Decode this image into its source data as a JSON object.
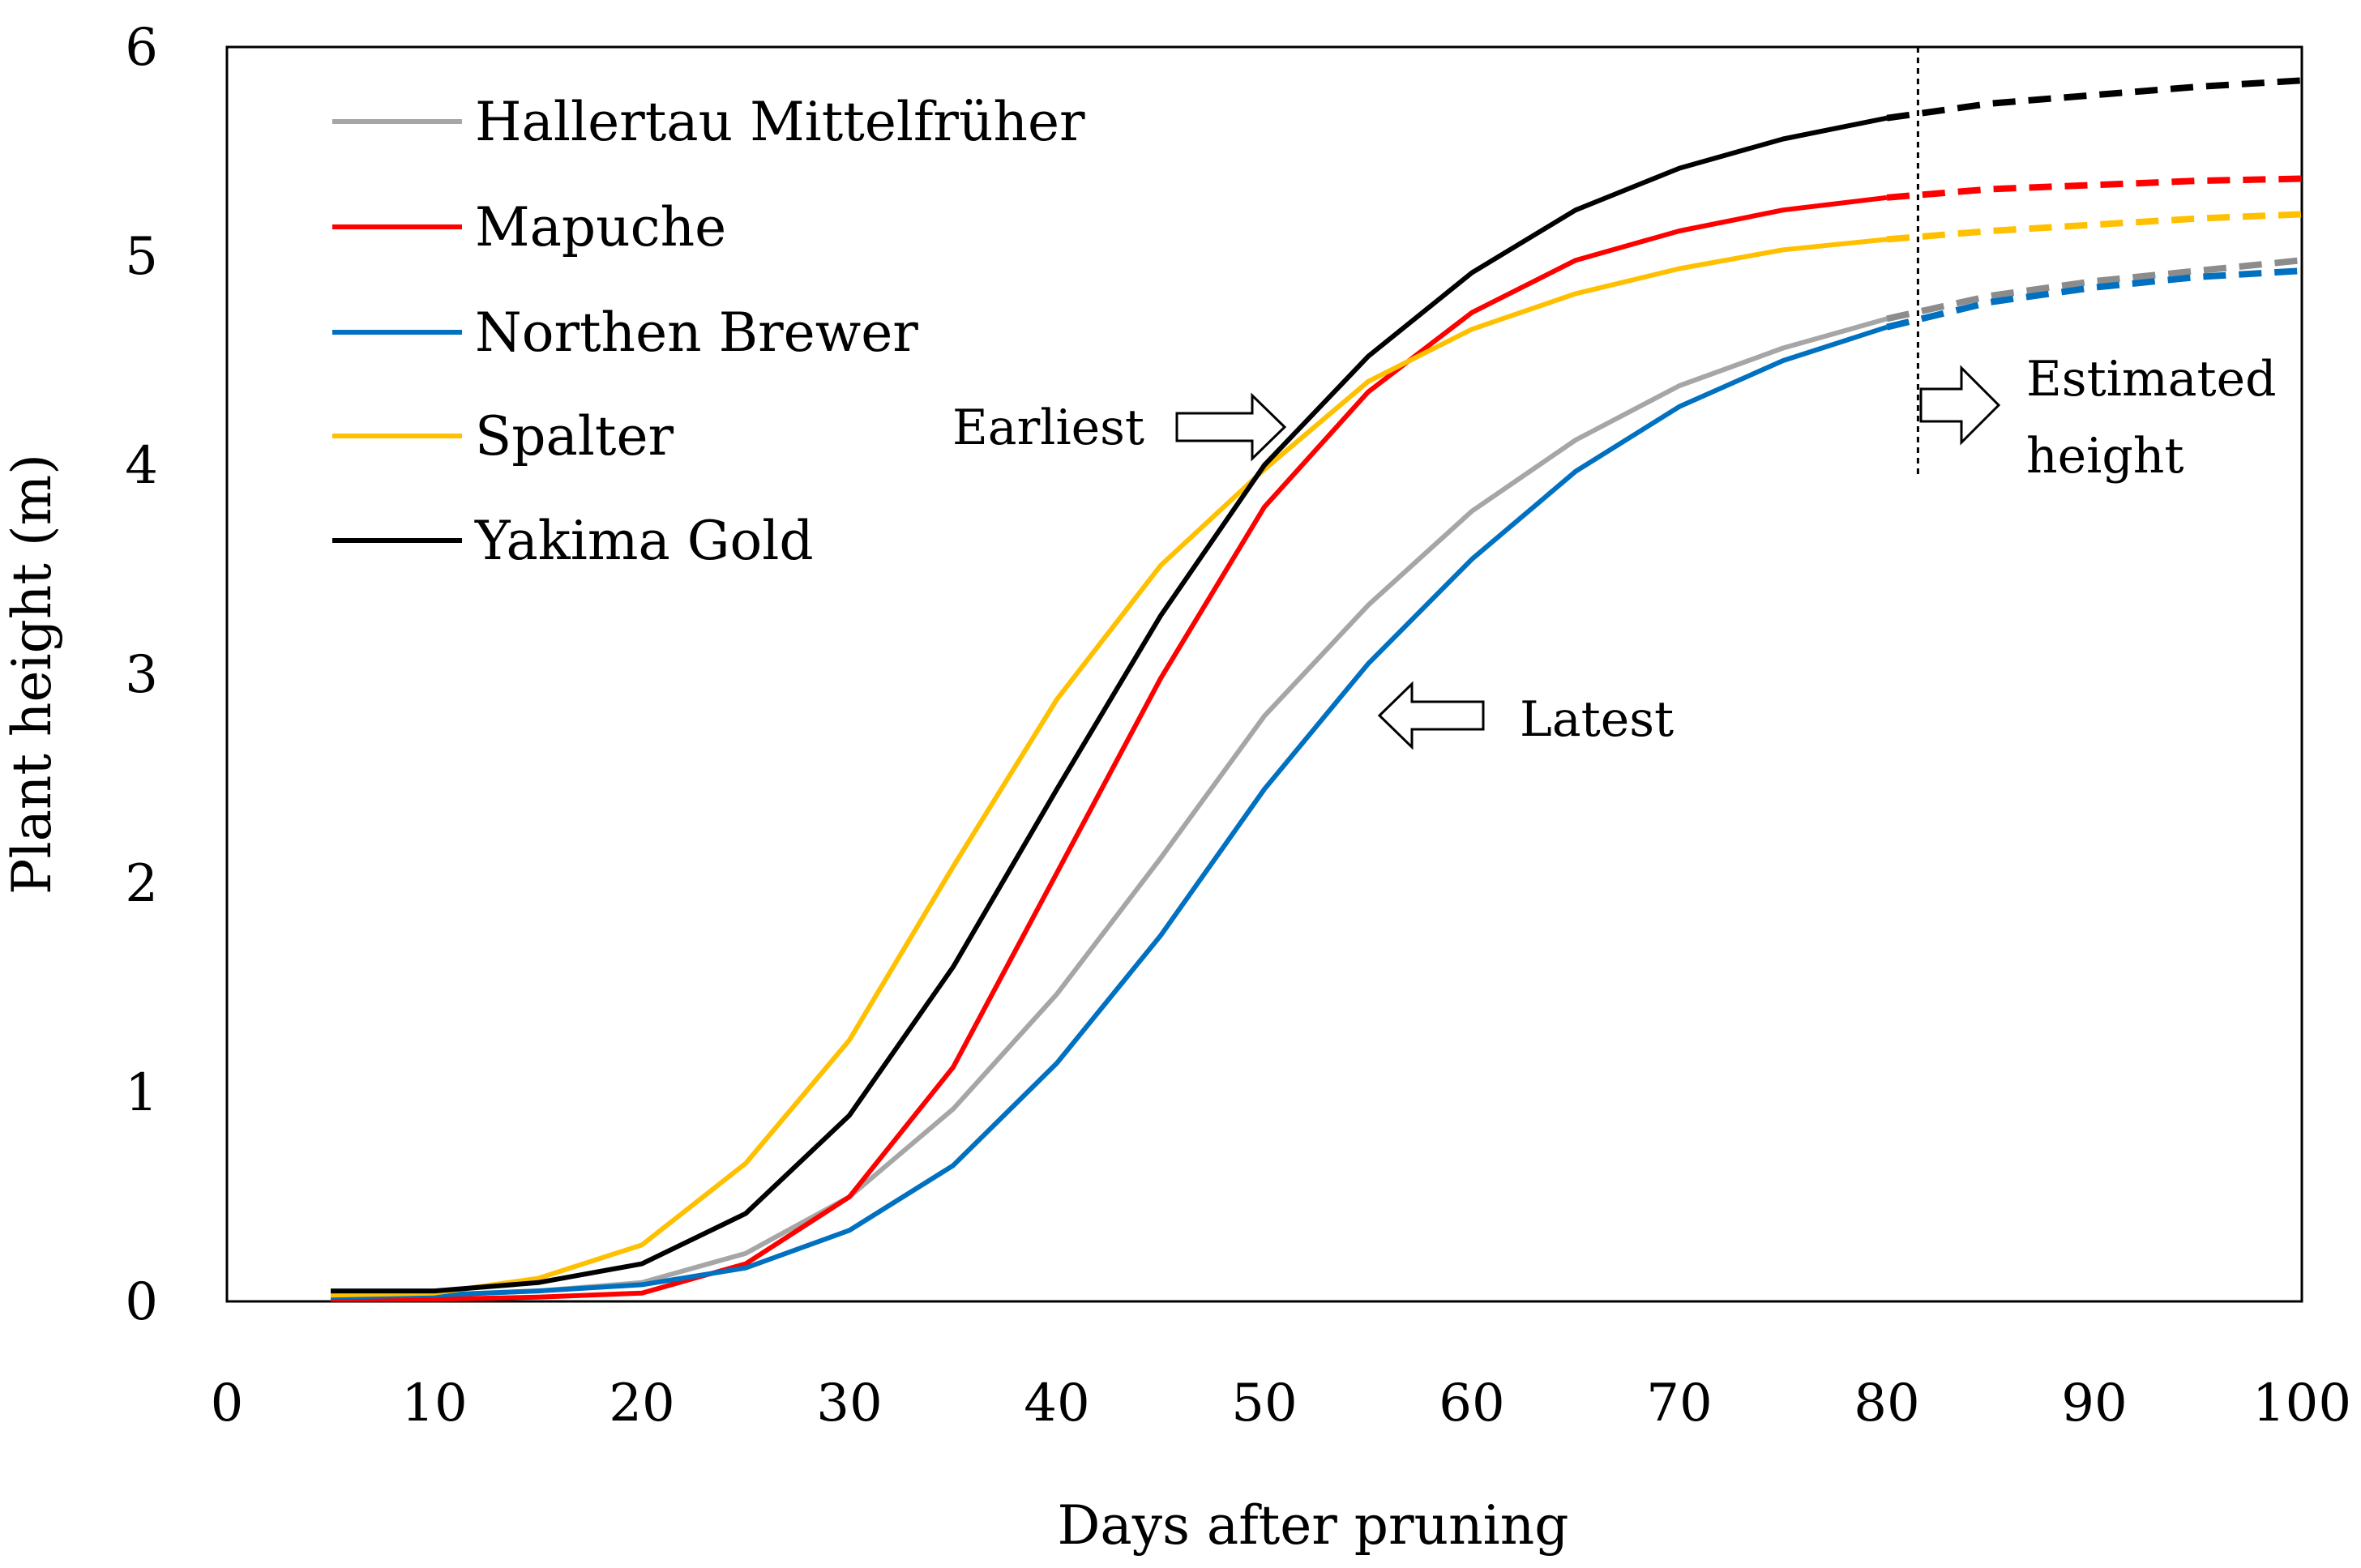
{
  "chart_data": {
    "type": "line",
    "xlabel": "Days after pruning",
    "ylabel": "Plant height (m)",
    "xlim": [
      0,
      100
    ],
    "ylim": [
      0,
      6
    ],
    "xticks": [
      0,
      10,
      20,
      30,
      40,
      50,
      60,
      70,
      80,
      90,
      100
    ],
    "yticks": [
      0,
      1,
      2,
      3,
      4,
      5,
      6
    ],
    "grid": false,
    "legend_position": "top-left",
    "estimate_boundary_x": 81.5,
    "series": [
      {
        "name": "Hallertau Mittelfrüher",
        "color": "#A6A6A6",
        "estimated_color": "#8C8C8C",
        "observed": {
          "x": [
            5,
            10,
            15,
            20,
            25,
            30,
            35,
            40,
            45,
            50,
            55,
            60,
            65,
            70,
            75,
            80
          ],
          "y": [
            0.02,
            0.03,
            0.05,
            0.09,
            0.23,
            0.5,
            0.92,
            1.47,
            2.12,
            2.8,
            3.33,
            3.78,
            4.12,
            4.38,
            4.56,
            4.7
          ]
        },
        "estimated": {
          "x": [
            80,
            85,
            90,
            95,
            100
          ],
          "y": [
            4.7,
            4.81,
            4.88,
            4.93,
            4.98
          ]
        }
      },
      {
        "name": "Mapuche",
        "color": "#FF0000",
        "estimated_color": "#FF0000",
        "observed": {
          "x": [
            5,
            10,
            15,
            20,
            25,
            30,
            35,
            40,
            45,
            50,
            55,
            60,
            65,
            70,
            75,
            80
          ],
          "y": [
            0.01,
            0.01,
            0.02,
            0.04,
            0.18,
            0.5,
            1.12,
            2.05,
            2.98,
            3.8,
            4.35,
            4.73,
            4.98,
            5.12,
            5.22,
            5.28
          ]
        },
        "estimated": {
          "x": [
            80,
            85,
            90,
            95,
            100
          ],
          "y": [
            5.28,
            5.32,
            5.34,
            5.36,
            5.37
          ]
        }
      },
      {
        "name": "Northen Brewer",
        "color": "#0070C0",
        "estimated_color": "#0070C0",
        "observed": {
          "x": [
            5,
            10,
            15,
            20,
            25,
            30,
            35,
            40,
            45,
            50,
            55,
            60,
            65,
            70,
            75,
            80
          ],
          "y": [
            0.02,
            0.03,
            0.05,
            0.08,
            0.16,
            0.34,
            0.65,
            1.14,
            1.75,
            2.45,
            3.05,
            3.55,
            3.97,
            4.28,
            4.5,
            4.66
          ]
        },
        "estimated": {
          "x": [
            80,
            85,
            90,
            95,
            100
          ],
          "y": [
            4.66,
            4.78,
            4.85,
            4.9,
            4.93
          ]
        }
      },
      {
        "name": "Spalter",
        "color": "#FFC000",
        "estimated_color": "#FFC000",
        "observed": {
          "x": [
            5,
            10,
            15,
            20,
            25,
            30,
            35,
            40,
            45,
            50,
            55,
            60,
            65,
            70,
            75,
            80
          ],
          "y": [
            0.03,
            0.04,
            0.11,
            0.27,
            0.66,
            1.25,
            2.08,
            2.88,
            3.52,
            3.98,
            4.4,
            4.65,
            4.82,
            4.94,
            5.03,
            5.08
          ]
        },
        "estimated": {
          "x": [
            80,
            85,
            90,
            95,
            100
          ],
          "y": [
            5.08,
            5.12,
            5.15,
            5.18,
            5.2
          ]
        }
      },
      {
        "name": "Yakima Gold",
        "color": "#000000",
        "estimated_color": "#000000",
        "observed": {
          "x": [
            5,
            10,
            15,
            20,
            25,
            30,
            35,
            40,
            45,
            50,
            55,
            60,
            65,
            70,
            75,
            80
          ],
          "y": [
            0.05,
            0.05,
            0.09,
            0.18,
            0.42,
            0.89,
            1.6,
            2.45,
            3.28,
            4.0,
            4.52,
            4.92,
            5.22,
            5.42,
            5.56,
            5.66
          ]
        },
        "estimated": {
          "x": [
            80,
            85,
            90,
            95,
            100
          ],
          "y": [
            5.66,
            5.73,
            5.77,
            5.81,
            5.84
          ]
        }
      }
    ],
    "annotations": [
      {
        "text": "Earliest",
        "arrow": "right",
        "x": 52.0,
        "y": 4.2
      },
      {
        "text": "Latest",
        "arrow": "left",
        "x": 55.5,
        "y": 2.8
      },
      {
        "text": "Estimated",
        "arrow": "right",
        "x": 81.5,
        "y": 4.2
      },
      {
        "text": "height",
        "arrow": "none",
        "x": 81.5,
        "y": 4.2
      }
    ]
  }
}
